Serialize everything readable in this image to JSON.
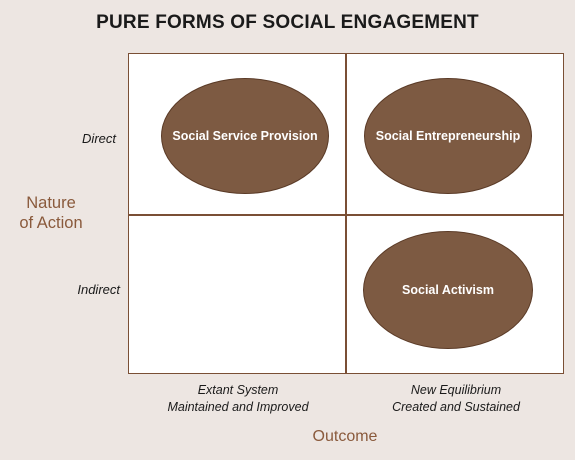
{
  "title": "PURE FORMS OF SOCIAL ENGAGEMENT",
  "colors": {
    "background": "#ede6e2",
    "oval_fill": "#7d5a42",
    "grid_line": "#7a4f35",
    "axis_title": "#8a5a3c"
  },
  "y_axis": {
    "title_line1": "Nature",
    "title_line2": "of Action",
    "rows": [
      "Direct",
      "Indirect"
    ]
  },
  "x_axis": {
    "title": "Outcome",
    "columns": [
      {
        "line1": "Extant System",
        "line2": "Maintained and Improved"
      },
      {
        "line1": "New Equilibrium",
        "line2": "Created and Sustained"
      }
    ]
  },
  "quadrants": {
    "direct_extant": "Social Service Provision",
    "direct_new": "Social Entrepreneurship",
    "indirect_extant": "",
    "indirect_new": "Social Activism"
  }
}
